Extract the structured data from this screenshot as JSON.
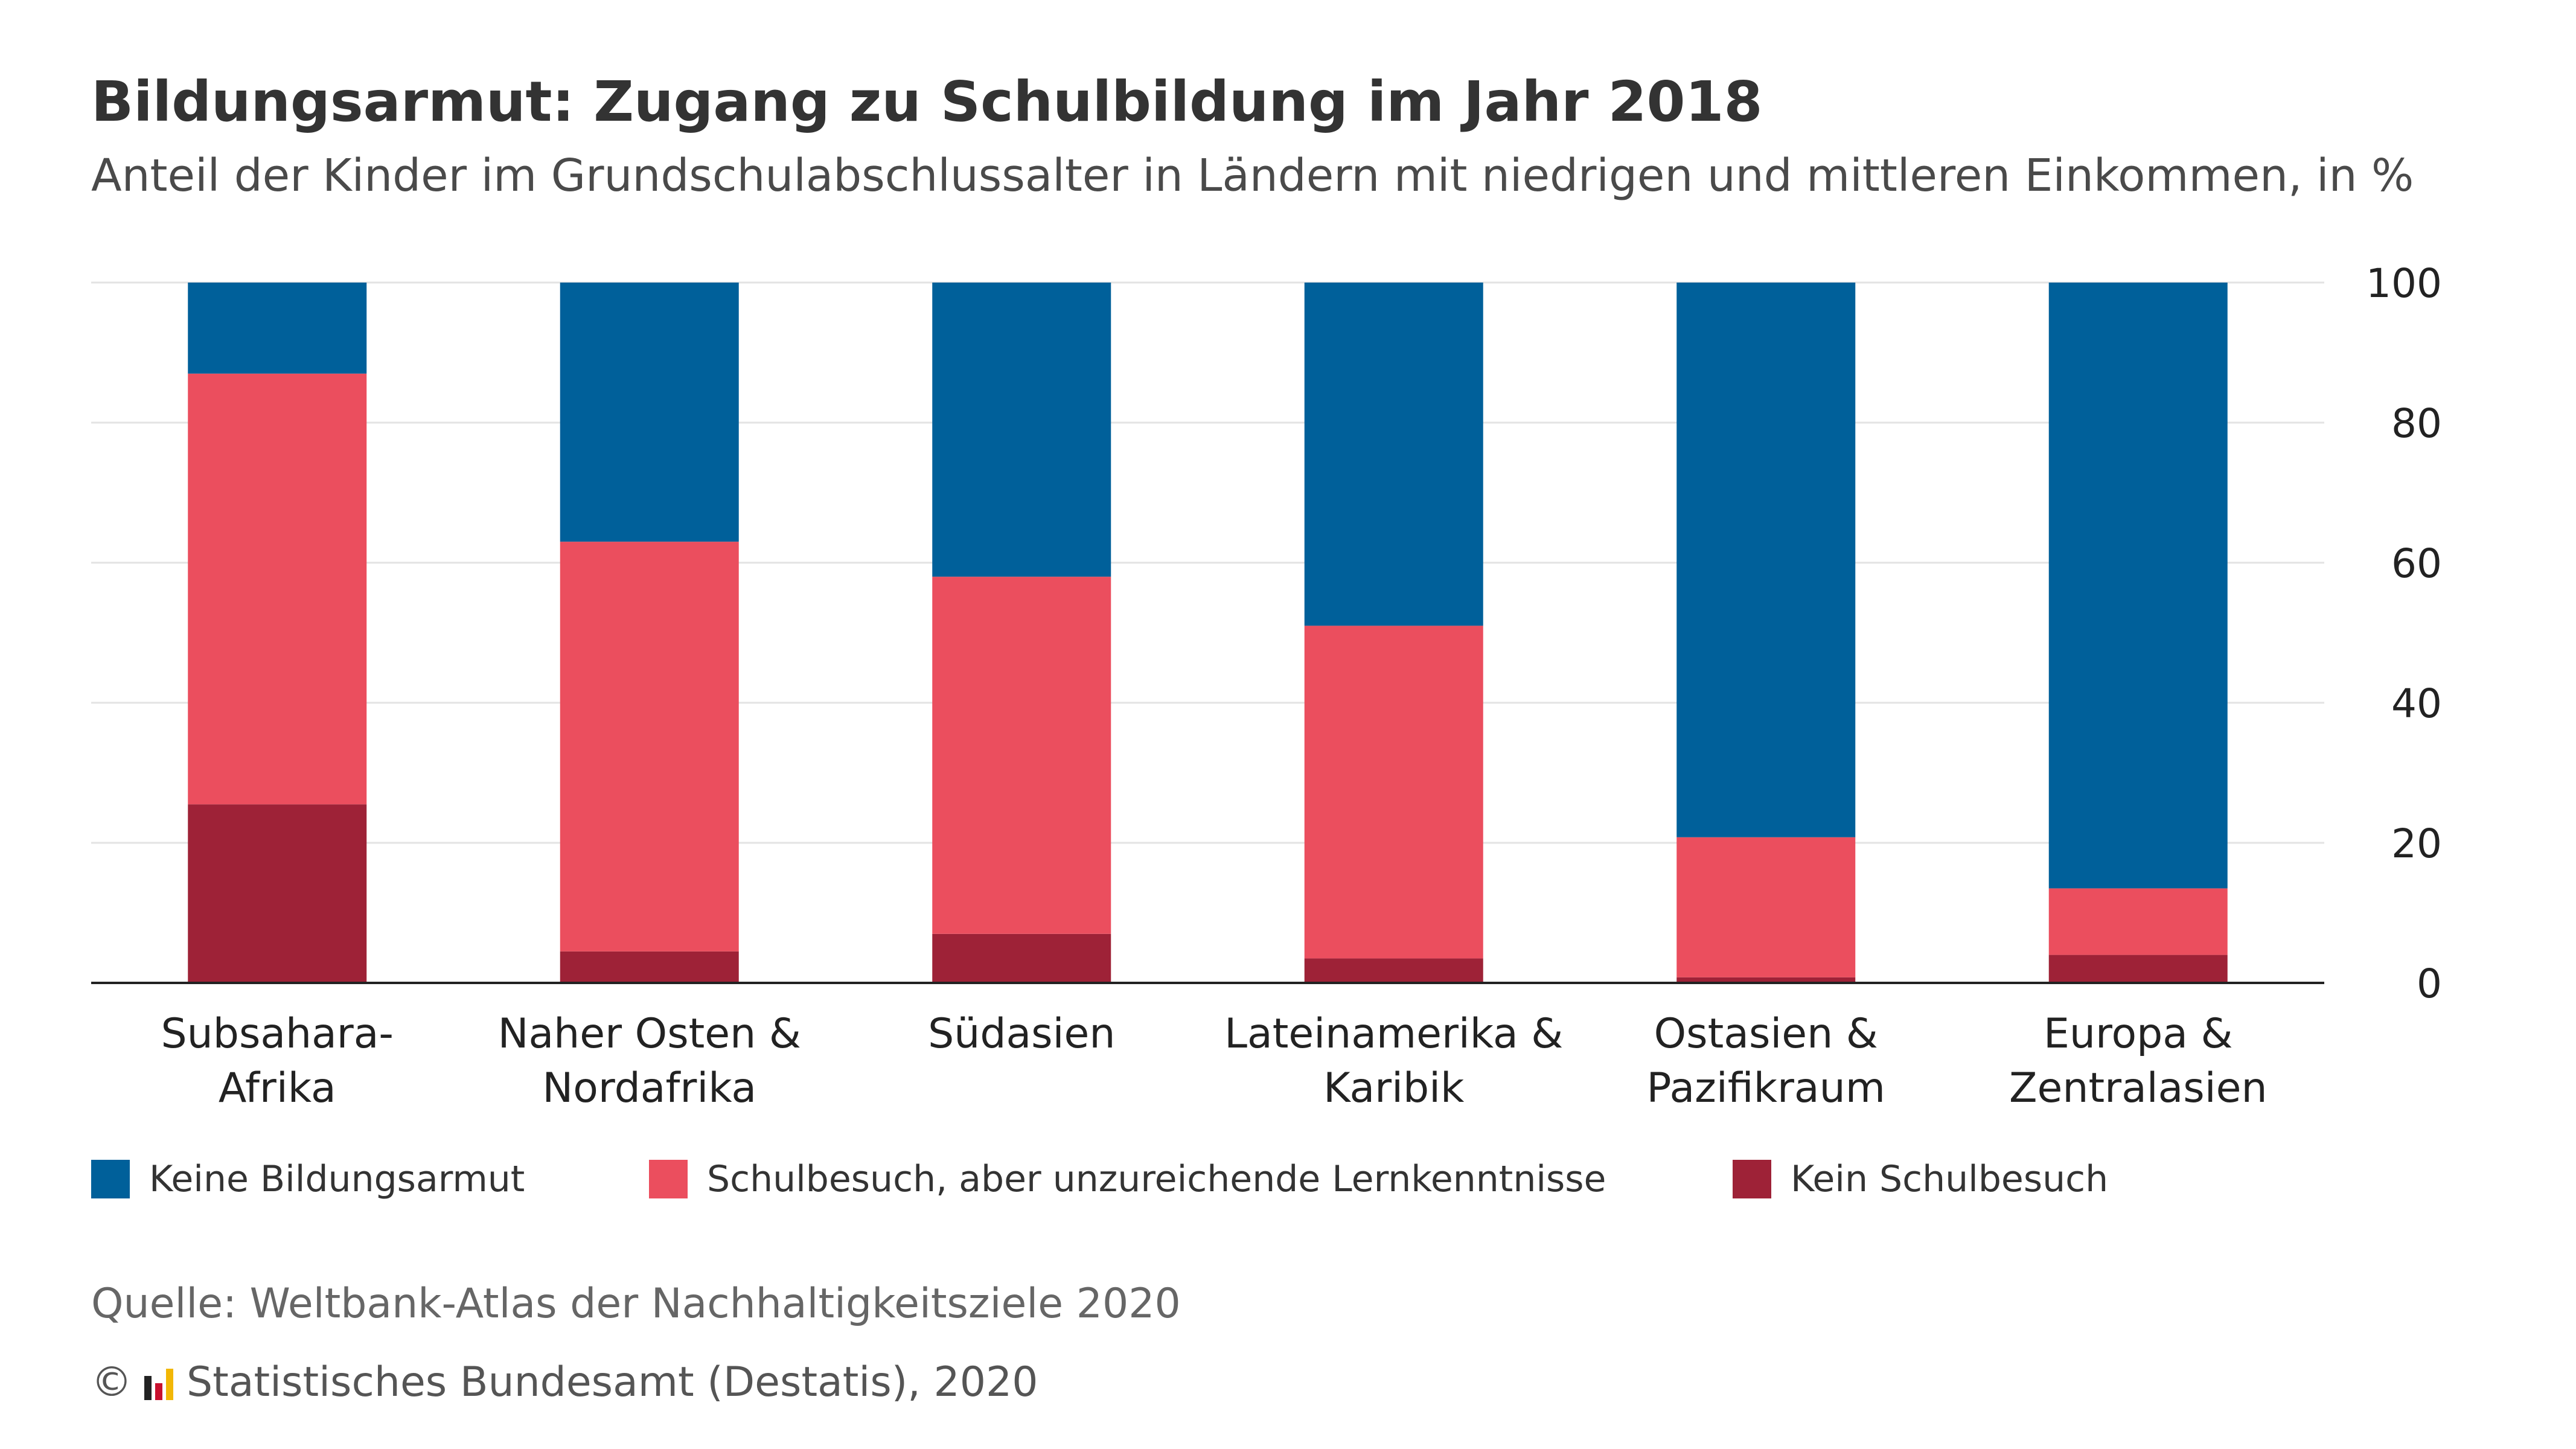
{
  "header": {
    "title": "Bildungsarmut: Zugang zu Schulbildung im Jahr 2018",
    "subtitle": "Anteil der Kinder im Grundschulabschlussalter in Ländern mit niedrigen und mittleren Einkommen, in %"
  },
  "chart_data": {
    "type": "bar",
    "stacked": true,
    "categories": [
      [
        "Subsahara-",
        "Afrika"
      ],
      [
        "Naher Osten &",
        "Nordafrika"
      ],
      [
        "Südasien"
      ],
      [
        "Lateinamerika &",
        "Karibik"
      ],
      [
        "Ostasien &",
        "Pazifikraum"
      ],
      [
        "Europa &",
        "Zentralasien"
      ]
    ],
    "series": [
      {
        "name": "Kein Schulbesuch",
        "color": "#9e2237",
        "values": [
          25.5,
          4.5,
          7,
          3.5,
          0.8,
          4
        ]
      },
      {
        "name": "Schulbesuch, aber unzureichende Lernkenntnisse",
        "color": "#eb4e5e",
        "values": [
          61.5,
          58.5,
          51,
          47.5,
          20,
          9.5
        ]
      },
      {
        "name": "Keine Bildungsarmut",
        "color": "#00609a",
        "values": [
          13,
          37,
          42,
          49,
          79.2,
          86.5
        ]
      }
    ],
    "ylim": [
      0,
      100
    ],
    "yticks": [
      0,
      20,
      40,
      60,
      80,
      100
    ],
    "y_axis_side": "right",
    "grid": true,
    "legend_position": "bottom"
  },
  "legend": {
    "items": [
      {
        "label": "Keine Bildungsarmut",
        "color": "#00609a"
      },
      {
        "label": "Schulbesuch, aber unzureichende Lernkenntnisse",
        "color": "#eb4e5e"
      },
      {
        "label": "Kein Schulbesuch",
        "color": "#9e2237"
      }
    ]
  },
  "footer": {
    "source": "Quelle: Weltbank-Atlas der Nachhaltigkeitsziele 2020",
    "copyright_symbol": "©",
    "copyright_text": "Statistisches Bundesamt (Destatis), 2020",
    "logo_icon": "destatis-logo-icon"
  }
}
